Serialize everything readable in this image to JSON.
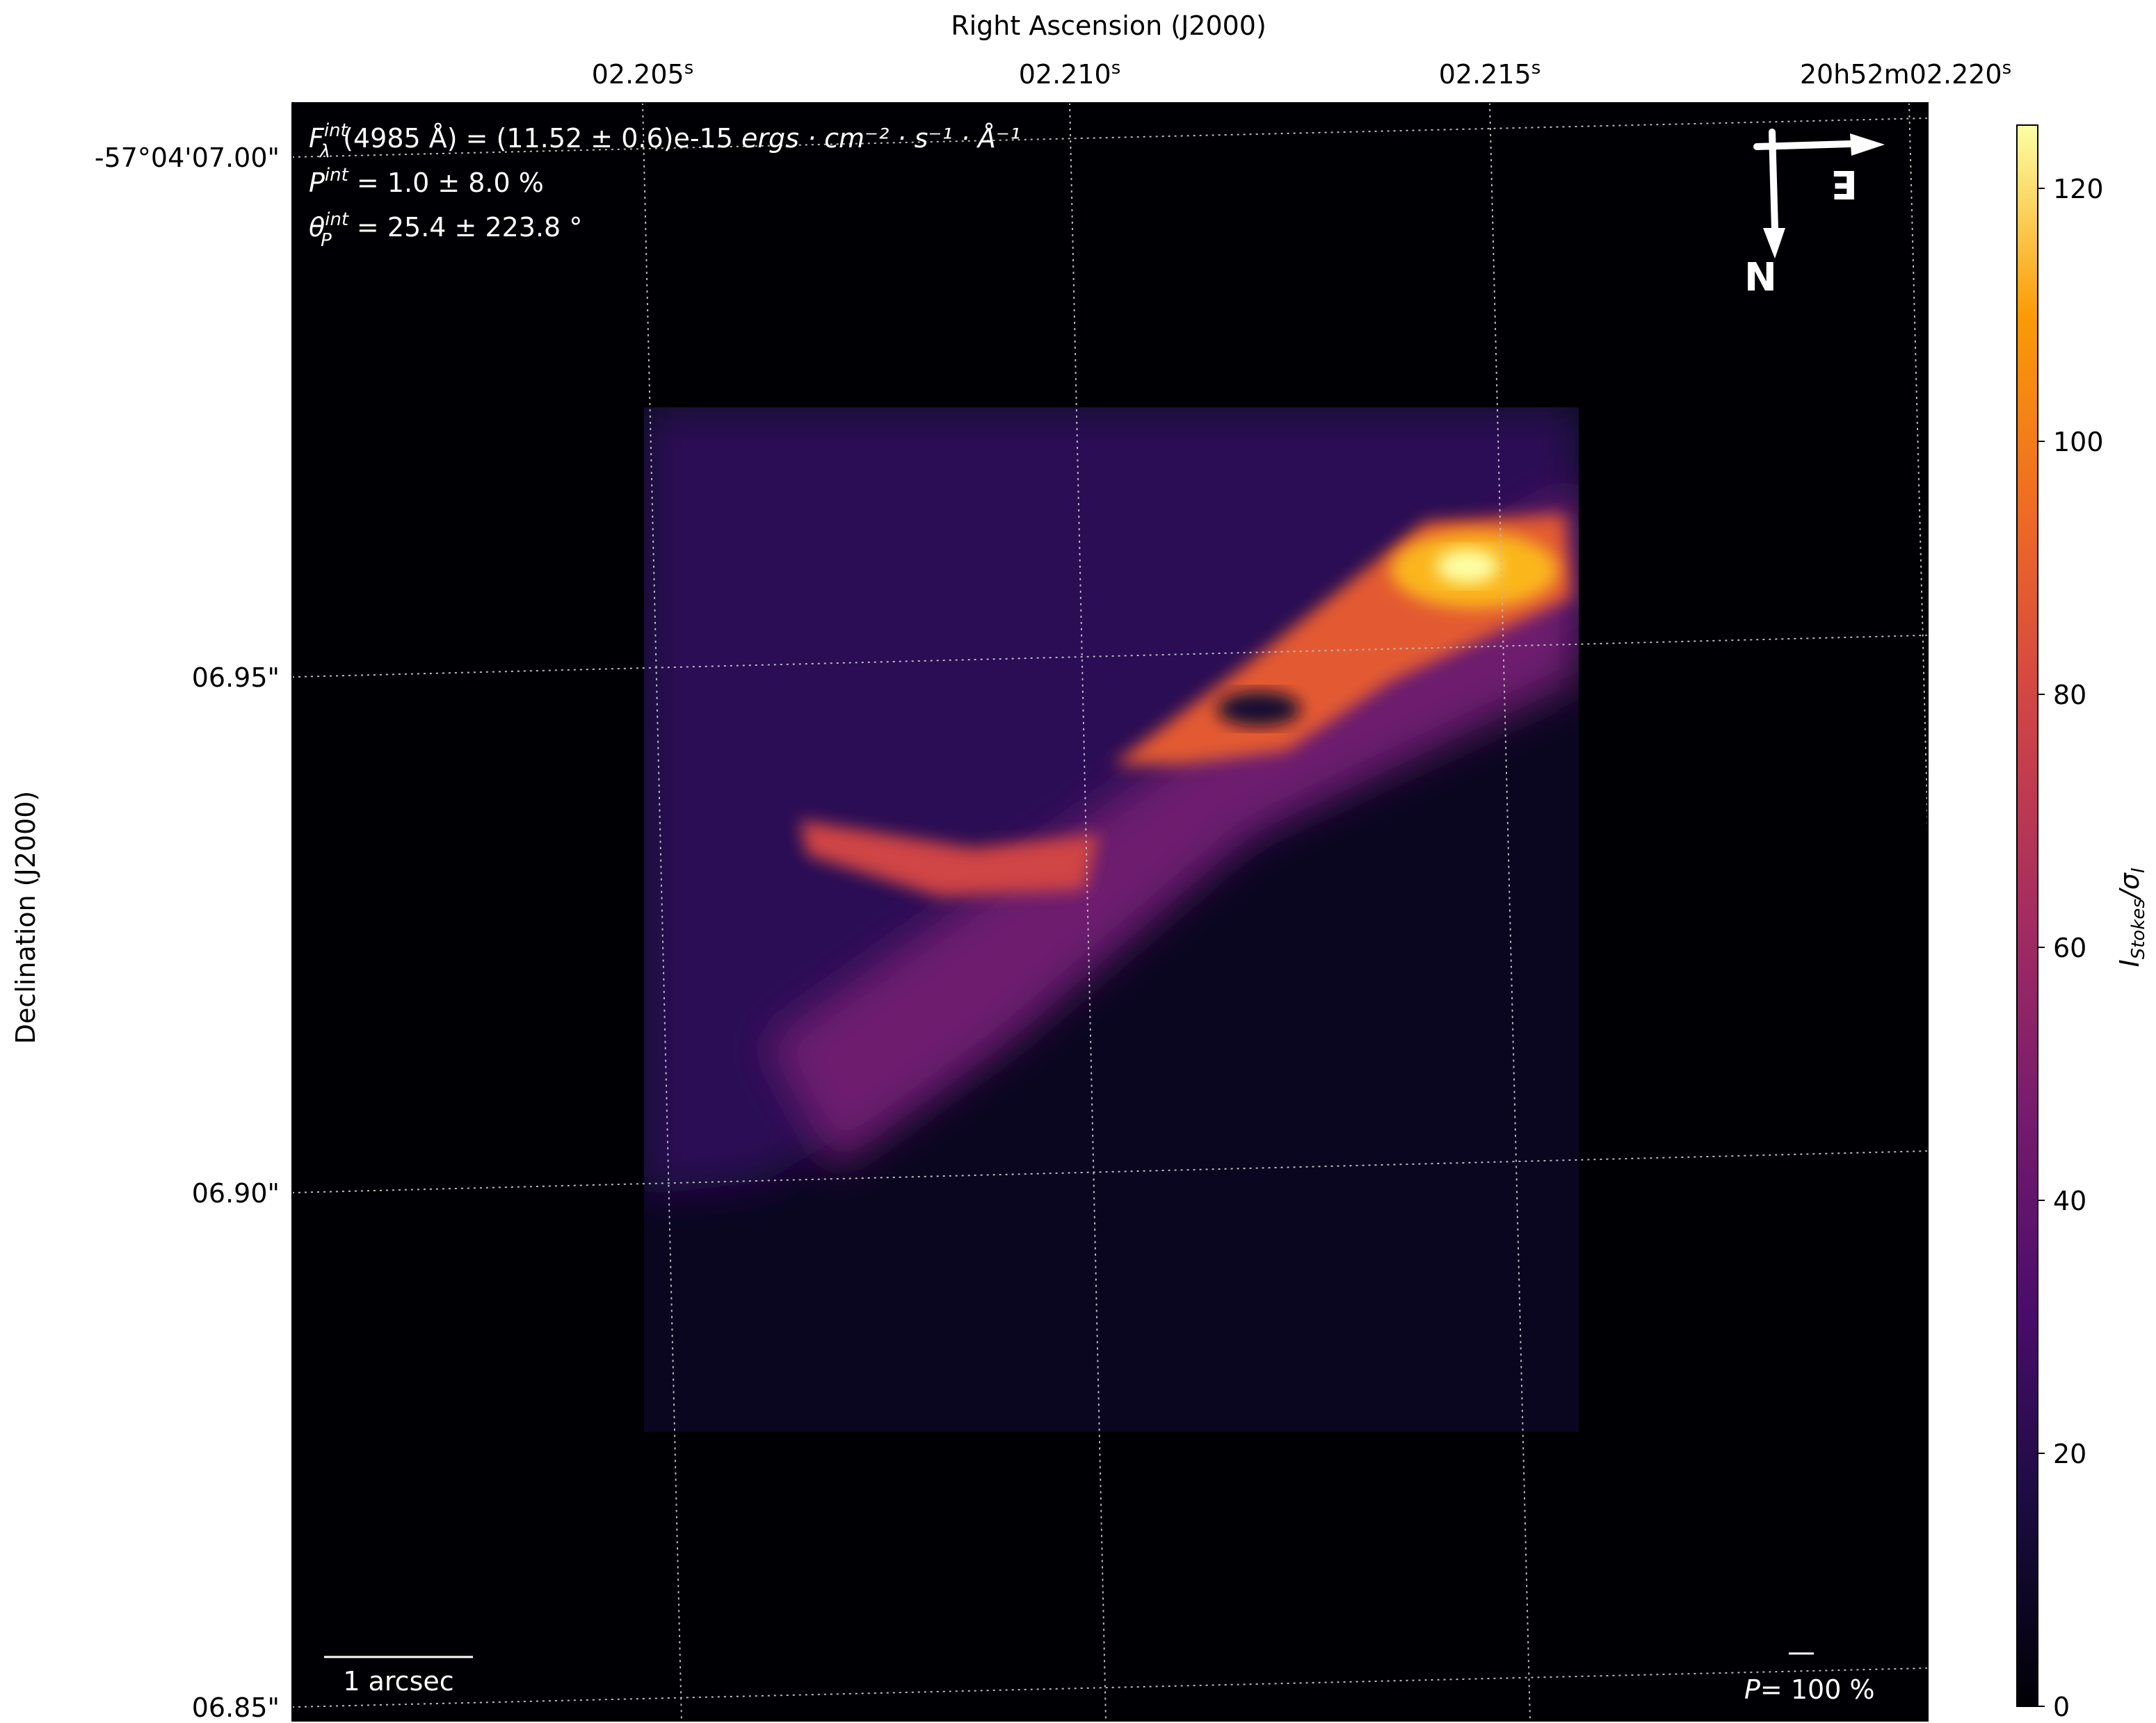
{
  "chart_data": {
    "type": "heatmap",
    "xlabel": "Right Ascension (J2000)",
    "ylabel": "Declination (J2000)",
    "x_ticks": [
      "02.205",
      "02.210",
      "02.215",
      "20h52m02.220"
    ],
    "x_tick_parts": [
      {
        "main": "02.205",
        "sup": "s"
      },
      {
        "main": "02.210",
        "sup": "s"
      },
      {
        "main": "02.215",
        "sup": "s"
      },
      {
        "pre": "20",
        "h": "h",
        "mid": "52",
        "m": "m",
        "main": "02.220",
        "sup": "s"
      }
    ],
    "y_ticks": [
      "-57°04'07.00\"",
      "06.95\"",
      "06.90\"",
      "06.85\""
    ],
    "colorbar": {
      "label_main": "I",
      "label_sub": "Stokes",
      "label_slash": "/σ",
      "label_sub2": "I",
      "colormap": "inferno",
      "range": [
        0,
        125
      ],
      "ticks": [
        "0",
        "20",
        "40",
        "60",
        "80",
        "100",
        "120"
      ]
    },
    "grid": true,
    "contours": true
  },
  "annotations": {
    "flux": {
      "F": "F",
      "sup": "int",
      "sub": "λ",
      "rest": "(4985 Å) = (11.52 ± 0.6)e-15 ",
      "units": "ergs · cm⁻² · s⁻¹ · Å⁻¹"
    },
    "pol": {
      "P": "P",
      "sup": "int",
      "rest": " = 1.0 ± 8.0 %"
    },
    "angle": {
      "theta": "θ",
      "sub": "P",
      "sup": "int",
      "rest": " = 25.4 ± 223.8 °"
    },
    "scale_bar": "1 arcsec",
    "pol_scale": {
      "P": "P",
      "rest": "= 100 %"
    },
    "compass": {
      "north": "N",
      "east": "E"
    }
  },
  "colors": {
    "background": "#000004",
    "text": "#ffffff",
    "grid": "#bbbbbb"
  }
}
